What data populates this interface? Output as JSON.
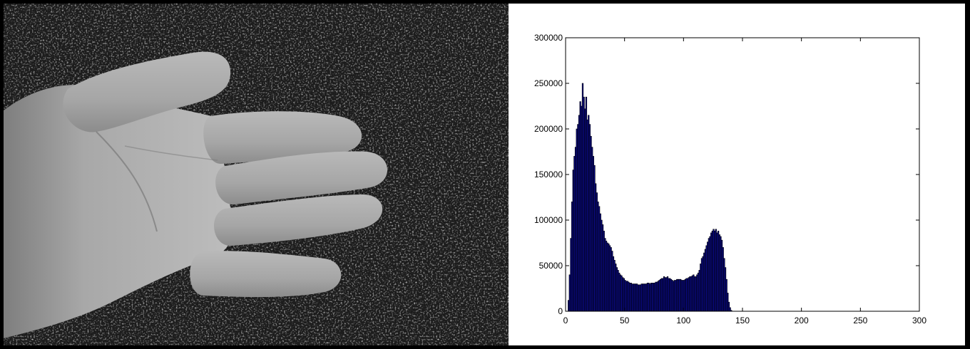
{
  "colors": {
    "bar_fill": "#0a0a8c",
    "bar_edge": "#000000",
    "background": "#000000",
    "plot_bg": "#ffffff",
    "skin": "#a9a9a9",
    "carpet": "#1c1c1c"
  },
  "photo": {
    "subject": "hand-on-carpet-grayscale"
  },
  "chart_data": {
    "type": "bar",
    "title": "",
    "xlabel": "",
    "ylabel": "",
    "xlim": [
      0,
      300
    ],
    "ylim": [
      0,
      300000
    ],
    "xticks": [
      0,
      50,
      100,
      150,
      200,
      250,
      300
    ],
    "yticks": [
      0,
      50000,
      100000,
      150000,
      200000,
      250000,
      300000
    ],
    "x_tick_labels": [
      "0",
      "50",
      "100",
      "150",
      "200",
      "250",
      "300"
    ],
    "y_tick_labels": [
      "0",
      "50000",
      "100000",
      "150000",
      "200000",
      "250000",
      "300000"
    ],
    "grid": false,
    "legend": "none",
    "bin_width": 1,
    "bin_start": 0,
    "values": [
      0,
      0,
      12000,
      40000,
      80000,
      120000,
      155000,
      170000,
      180000,
      200000,
      205000,
      215000,
      230000,
      225000,
      250000,
      235000,
      222000,
      235000,
      210000,
      215000,
      205000,
      192000,
      180000,
      170000,
      160000,
      140000,
      130000,
      120000,
      115000,
      107000,
      100000,
      95000,
      88000,
      80000,
      77000,
      75000,
      74000,
      72000,
      70000,
      66000,
      60000,
      56000,
      52000,
      48000,
      45000,
      42000,
      40000,
      39000,
      37000,
      36000,
      34000,
      33000,
      33000,
      32000,
      31000,
      31000,
      30000,
      30000,
      30000,
      30000,
      30000,
      29000,
      29000,
      29000,
      30000,
      30000,
      30000,
      30000,
      30000,
      31000,
      31000,
      30000,
      31000,
      31000,
      31000,
      31000,
      32000,
      32000,
      33000,
      34000,
      35000,
      36000,
      36000,
      38000,
      37000,
      37000,
      38000,
      36000,
      36000,
      35000,
      34000,
      33000,
      34000,
      34000,
      35000,
      35000,
      35000,
      35000,
      34000,
      34000,
      34000,
      35000,
      36000,
      36000,
      37000,
      38000,
      38000,
      39000,
      40000,
      38000,
      38000,
      40000,
      42000,
      45000,
      52000,
      58000,
      60000,
      64000,
      68000,
      72000,
      76000,
      80000,
      82000,
      86000,
      88000,
      90000,
      88000,
      90000,
      86000,
      88000,
      84000,
      82000,
      78000,
      70000,
      58000,
      48000,
      35000,
      20000,
      10000,
      4000,
      1000,
      0,
      0,
      0,
      0,
      0,
      0,
      0,
      0,
      0
    ]
  }
}
